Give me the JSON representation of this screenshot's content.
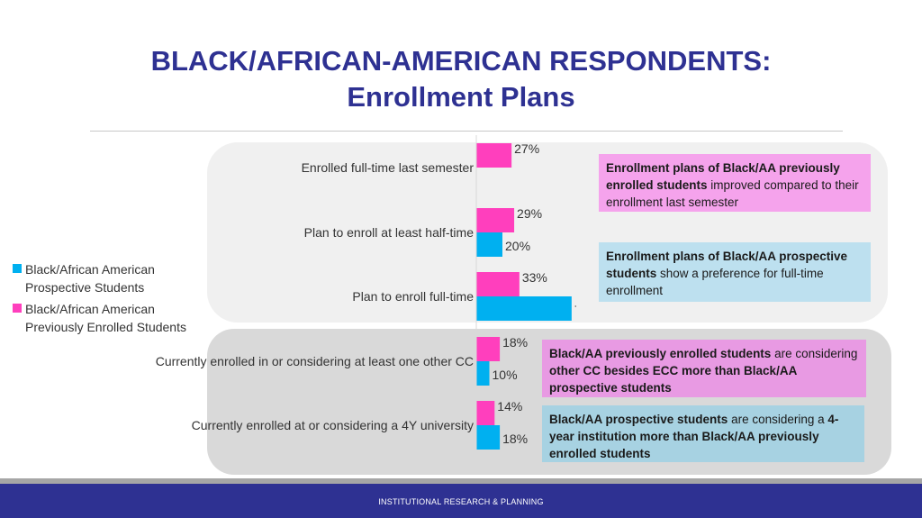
{
  "title_line1": "BLACK/AFRICAN-AMERICAN RESPONDENTS:",
  "title_line2": "Enrollment Plans",
  "footer": "INSTITUTIONAL RESEARCH & PLANNING",
  "colors": {
    "title": "#2e3192",
    "pink": "#ff3fbd",
    "blue": "#00b0f0",
    "footer_bar": "#2e3192"
  },
  "chart_data": {
    "type": "bar",
    "orientation": "horizontal",
    "categories": [
      "Enrolled full-time last semester",
      "Plan to enroll at least half-time",
      "Plan to enroll full-time",
      "Currently enrolled in or considering at least one other CC",
      "Currently enrolled at or considering a 4Y university"
    ],
    "series": [
      {
        "name": "Black/African American Previously Enrolled Students",
        "color": "#ff3fbd",
        "values": [
          27,
          29,
          33,
          18,
          14
        ],
        "labels": [
          "27%",
          "29%",
          "33%",
          "18%",
          "14%"
        ]
      },
      {
        "name": "Black/African American Prospective Students",
        "color": "#00b0f0",
        "values": [
          null,
          20,
          73,
          10,
          18
        ],
        "labels": [
          "",
          "20%",
          "73%",
          "10%",
          "18%"
        ]
      }
    ],
    "xlim": [
      0,
      100
    ],
    "unit": "%",
    "grid": false,
    "legend_position": "left"
  },
  "legend": [
    {
      "line1": "Black/African American",
      "line2": "Prospective Students",
      "color": "#00b0f0"
    },
    {
      "line1": "Black/African American",
      "line2": "Previously Enrolled Students",
      "color": "#ff3fbd"
    }
  ],
  "callouts": [
    {
      "b1": "Enrollment plans of Black/AA previously enrolled students",
      "t1": " improved compared to their enrollment last semester"
    },
    {
      "b1": "Enrollment plans of Black/AA prospective students",
      "t1": " show a preference for full-time enrollment"
    },
    {
      "b1": "Black/AA previously enrolled students",
      "t1": " are considering ",
      "b2": "other CC besides ECC more than Black/AA prospective students"
    },
    {
      "b1": "Black/AA prospective students",
      "t1": " are considering a ",
      "b2": "4-year institution more than Black/AA previously enrolled students"
    }
  ]
}
